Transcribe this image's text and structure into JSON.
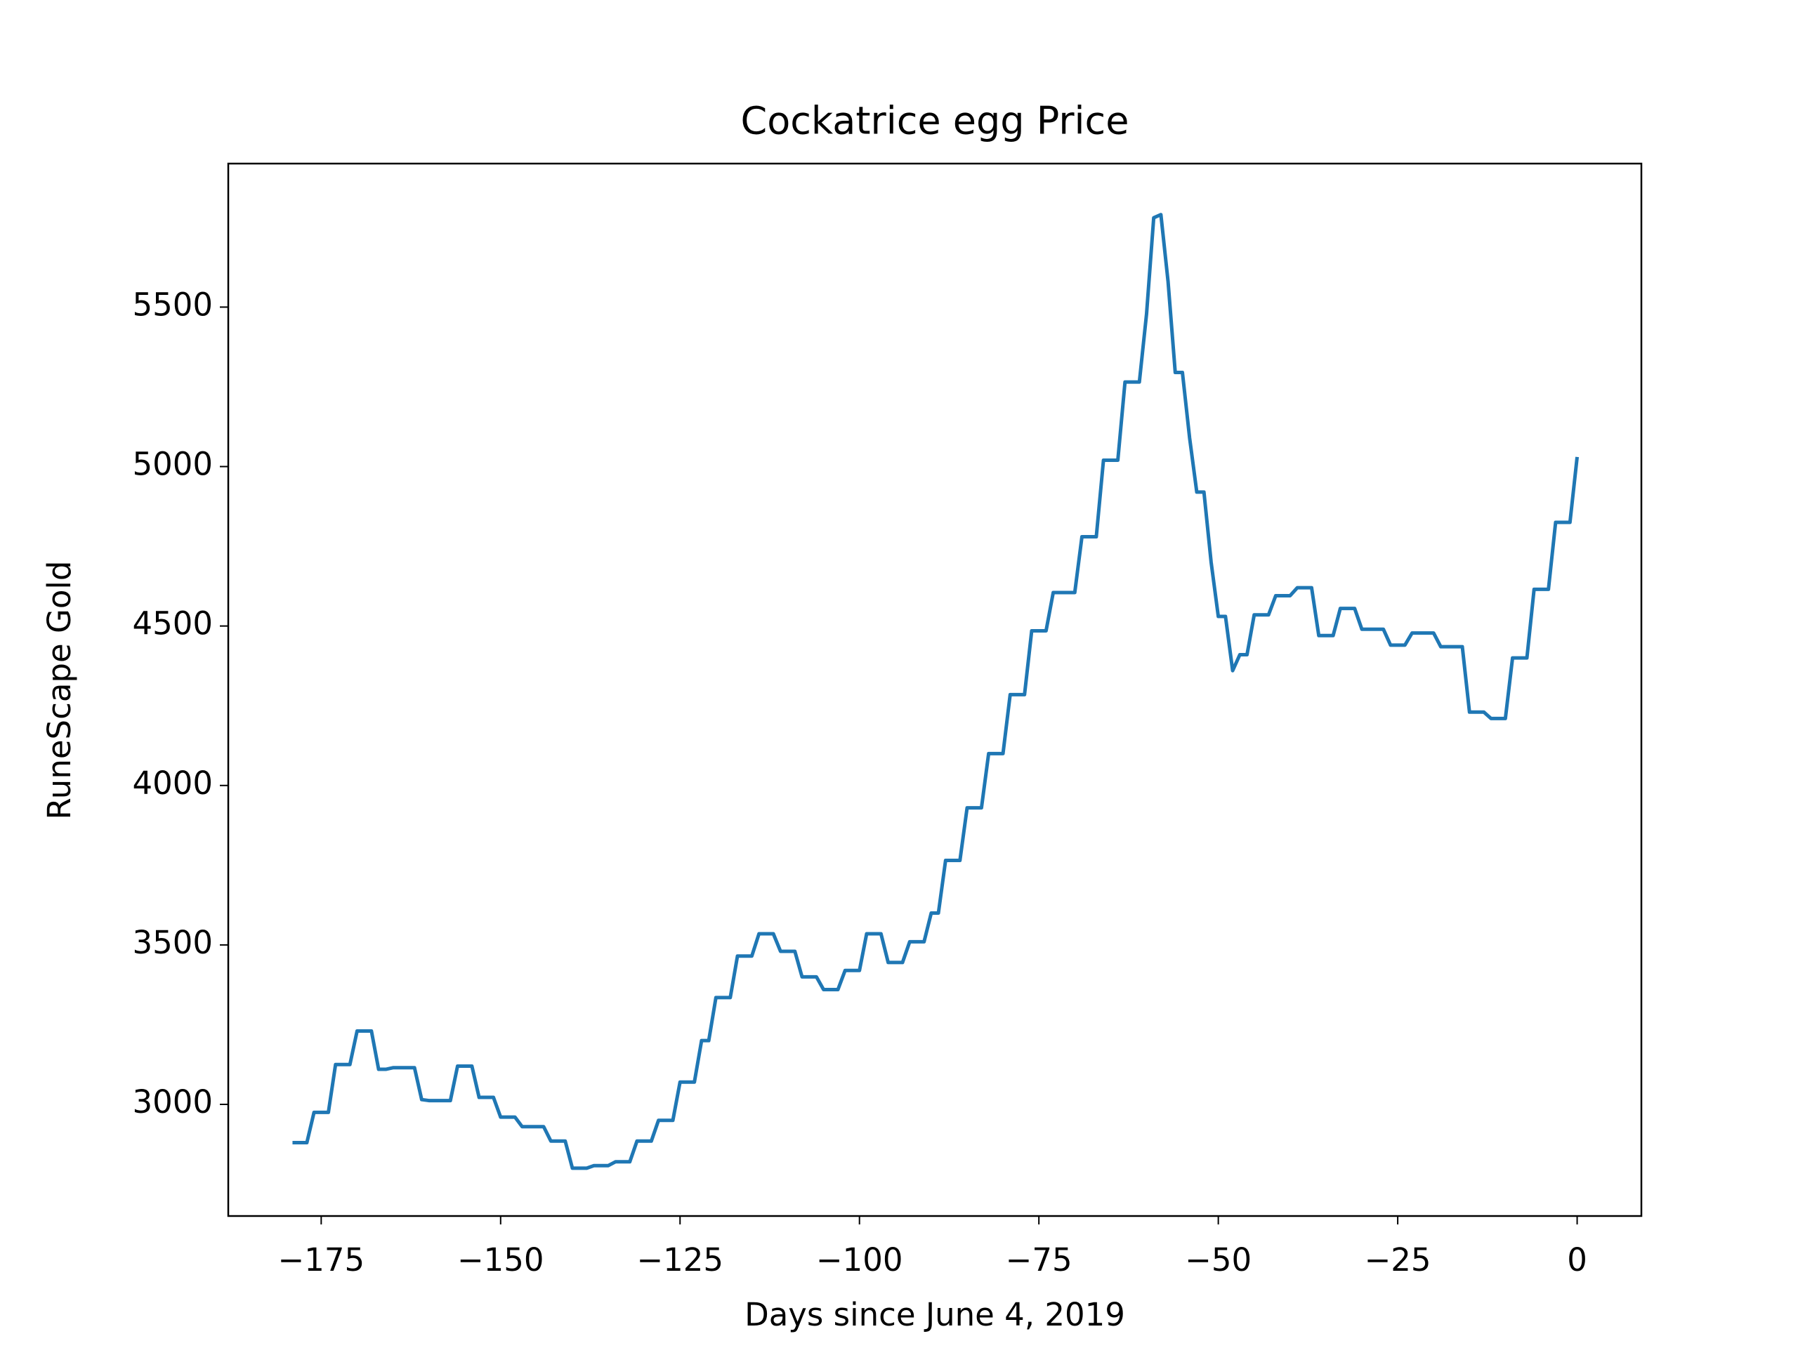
{
  "chart_data": {
    "type": "line",
    "title": "Cockatrice egg Price",
    "x_label": "Days since June 4, 2019",
    "y_label": "RuneScape Gold",
    "x": [
      -179,
      -178,
      -177,
      -176,
      -175,
      -174,
      -173,
      -172,
      -171,
      -170,
      -169,
      -168,
      -167,
      -166,
      -165,
      -164,
      -163,
      -162,
      -161,
      -160,
      -159,
      -158,
      -157,
      -156,
      -155,
      -154,
      -153,
      -152,
      -151,
      -150,
      -149,
      -148,
      -147,
      -146,
      -145,
      -144,
      -143,
      -142,
      -141,
      -140,
      -139,
      -138,
      -137,
      -136,
      -135,
      -134,
      -133,
      -132,
      -131,
      -130,
      -129,
      -128,
      -127,
      -126,
      -125,
      -124,
      -123,
      -122,
      -121,
      -120,
      -119,
      -118,
      -117,
      -116,
      -115,
      -114,
      -113,
      -112,
      -111,
      -110,
      -109,
      -108,
      -107,
      -106,
      -105,
      -104,
      -103,
      -102,
      -101,
      -100,
      -99,
      -98,
      -97,
      -96,
      -95,
      -94,
      -93,
      -92,
      -91,
      -90,
      -89,
      -88,
      -87,
      -86,
      -85,
      -84,
      -83,
      -82,
      -81,
      -80,
      -79,
      -78,
      -77,
      -76,
      -75,
      -74,
      -73,
      -72,
      -71,
      -70,
      -69,
      -68,
      -67,
      -66,
      -65,
      -64,
      -63,
      -62,
      -61,
      -60,
      -59,
      -58,
      -57,
      -56,
      -55,
      -54,
      -53,
      -52,
      -51,
      -50,
      -49,
      -48,
      -47,
      -46,
      -45,
      -44,
      -43,
      -42,
      -41,
      -40,
      -39,
      -38,
      -37,
      -36,
      -35,
      -34,
      -33,
      -32,
      -31,
      -30,
      -29,
      -28,
      -27,
      -26,
      -25,
      -24,
      -23,
      -22,
      -21,
      -20,
      -19,
      -18,
      -17,
      -16,
      -15,
      -14,
      -13,
      -12,
      -11,
      -10,
      -9,
      -8,
      -7,
      -6,
      -5,
      -4,
      -3,
      -2,
      -1,
      0
    ],
    "series": [
      {
        "color": "#1f77b4",
        "values": [
          2880,
          2880,
          2880,
          2975,
          2975,
          2975,
          3125,
          3125,
          3125,
          3230,
          3230,
          3230,
          3110,
          3110,
          3115,
          3115,
          3115,
          3115,
          3015,
          3012,
          3012,
          3012,
          3012,
          3120,
          3120,
          3120,
          3022,
          3022,
          3022,
          2960,
          2960,
          2960,
          2930,
          2930,
          2930,
          2930,
          2885,
          2885,
          2885,
          2800,
          2800,
          2800,
          2808,
          2808,
          2808,
          2820,
          2820,
          2820,
          2885,
          2885,
          2885,
          2950,
          2950,
          2950,
          3070,
          3070,
          3070,
          3200,
          3200,
          3335,
          3335,
          3335,
          3465,
          3465,
          3465,
          3535,
          3535,
          3535,
          3480,
          3480,
          3480,
          3400,
          3400,
          3400,
          3360,
          3360,
          3360,
          3420,
          3420,
          3420,
          3535,
          3535,
          3535,
          3445,
          3445,
          3445,
          3510,
          3510,
          3510,
          3600,
          3600,
          3765,
          3765,
          3765,
          3930,
          3930,
          3930,
          4100,
          4100,
          4100,
          4285,
          4285,
          4285,
          4485,
          4485,
          4485,
          4605,
          4605,
          4605,
          4605,
          4780,
          4780,
          4780,
          5020,
          5020,
          5020,
          5265,
          5265,
          5265,
          5478,
          5780,
          5790,
          5580,
          5295,
          5295,
          5090,
          4920,
          4920,
          4700,
          4530,
          4530,
          4360,
          4410,
          4410,
          4535,
          4535,
          4535,
          4595,
          4595,
          4595,
          4620,
          4620,
          4620,
          4470,
          4470,
          4470,
          4555,
          4555,
          4555,
          4490,
          4490,
          4490,
          4490,
          4440,
          4440,
          4440,
          4478,
          4478,
          4478,
          4478,
          4435,
          4435,
          4435,
          4435,
          4230,
          4230,
          4230,
          4210,
          4210,
          4210,
          4400,
          4400,
          4400,
          4615,
          4615,
          4615,
          4825,
          4825,
          4825,
          5030
        ]
      }
    ],
    "xlim": [
      -187.95,
      8.95
    ],
    "xticks": [
      {
        "value": -175,
        "label": "−175"
      },
      {
        "value": -150,
        "label": "−150"
      },
      {
        "value": -125,
        "label": "−125"
      },
      {
        "value": -100,
        "label": "−100"
      },
      {
        "value": -75,
        "label": "−75"
      },
      {
        "value": -50,
        "label": "−50"
      },
      {
        "value": -25,
        "label": "−25"
      },
      0
    ],
    "ylim": [
      2650,
      5950
    ],
    "yticks": [
      3000,
      3500,
      4000,
      4500,
      5000,
      5500
    ],
    "grid": false
  }
}
